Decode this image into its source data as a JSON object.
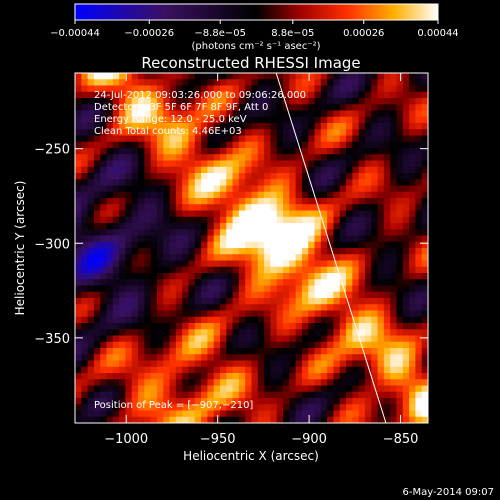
{
  "chart_data": {
    "type": "heatmap",
    "title": "Reconstructed RHESSI Image",
    "xlabel": "Heliocentric X (arcsec)",
    "ylabel": "Heliocentric Y (arcsec)",
    "xlim": [
      -1028,
      -835
    ],
    "ylim": [
      -395,
      -210
    ],
    "x_ticks": [
      -1000,
      -950,
      -900,
      -850
    ],
    "y_ticks": [
      -250,
      -300,
      -350
    ],
    "x_tick_labels": [
      "−1000",
      "−950",
      "−900",
      "−850"
    ],
    "y_tick_labels": [
      "−250",
      "−300",
      "−350"
    ],
    "colorbar": {
      "range": [
        -0.00044,
        0.00044
      ],
      "tick_values": [
        -0.00044,
        -0.00026,
        -8.8e-05,
        8.8e-05,
        0.00026,
        0.00044
      ],
      "tick_labels": [
        "−0.00044",
        "−0.00026",
        "−8.8e−05",
        "8.8e−05",
        "0.00026",
        "0.00044"
      ],
      "units_text": "(photons cm⁻² s⁻¹ asec⁻²)"
    },
    "annotations": [
      "24-Jul-2012 09:03:26.000 to 09:06:26.000",
      "Detectors: 3F 5F 6F 7F 8F 9F, Att 0",
      "Energy Range: 12.0 - 25.0 keV",
      "Clean     Total counts: 4.46E+03"
    ],
    "peak_label": "Position of Peak = [−907,−210]",
    "peak_position": [
      -907,
      -210
    ],
    "limb_line": [
      [
        -918,
        -210
      ],
      [
        -858,
        -395
      ]
    ]
  },
  "footer": {
    "date_stamp": "6-May-2014 09:07"
  }
}
